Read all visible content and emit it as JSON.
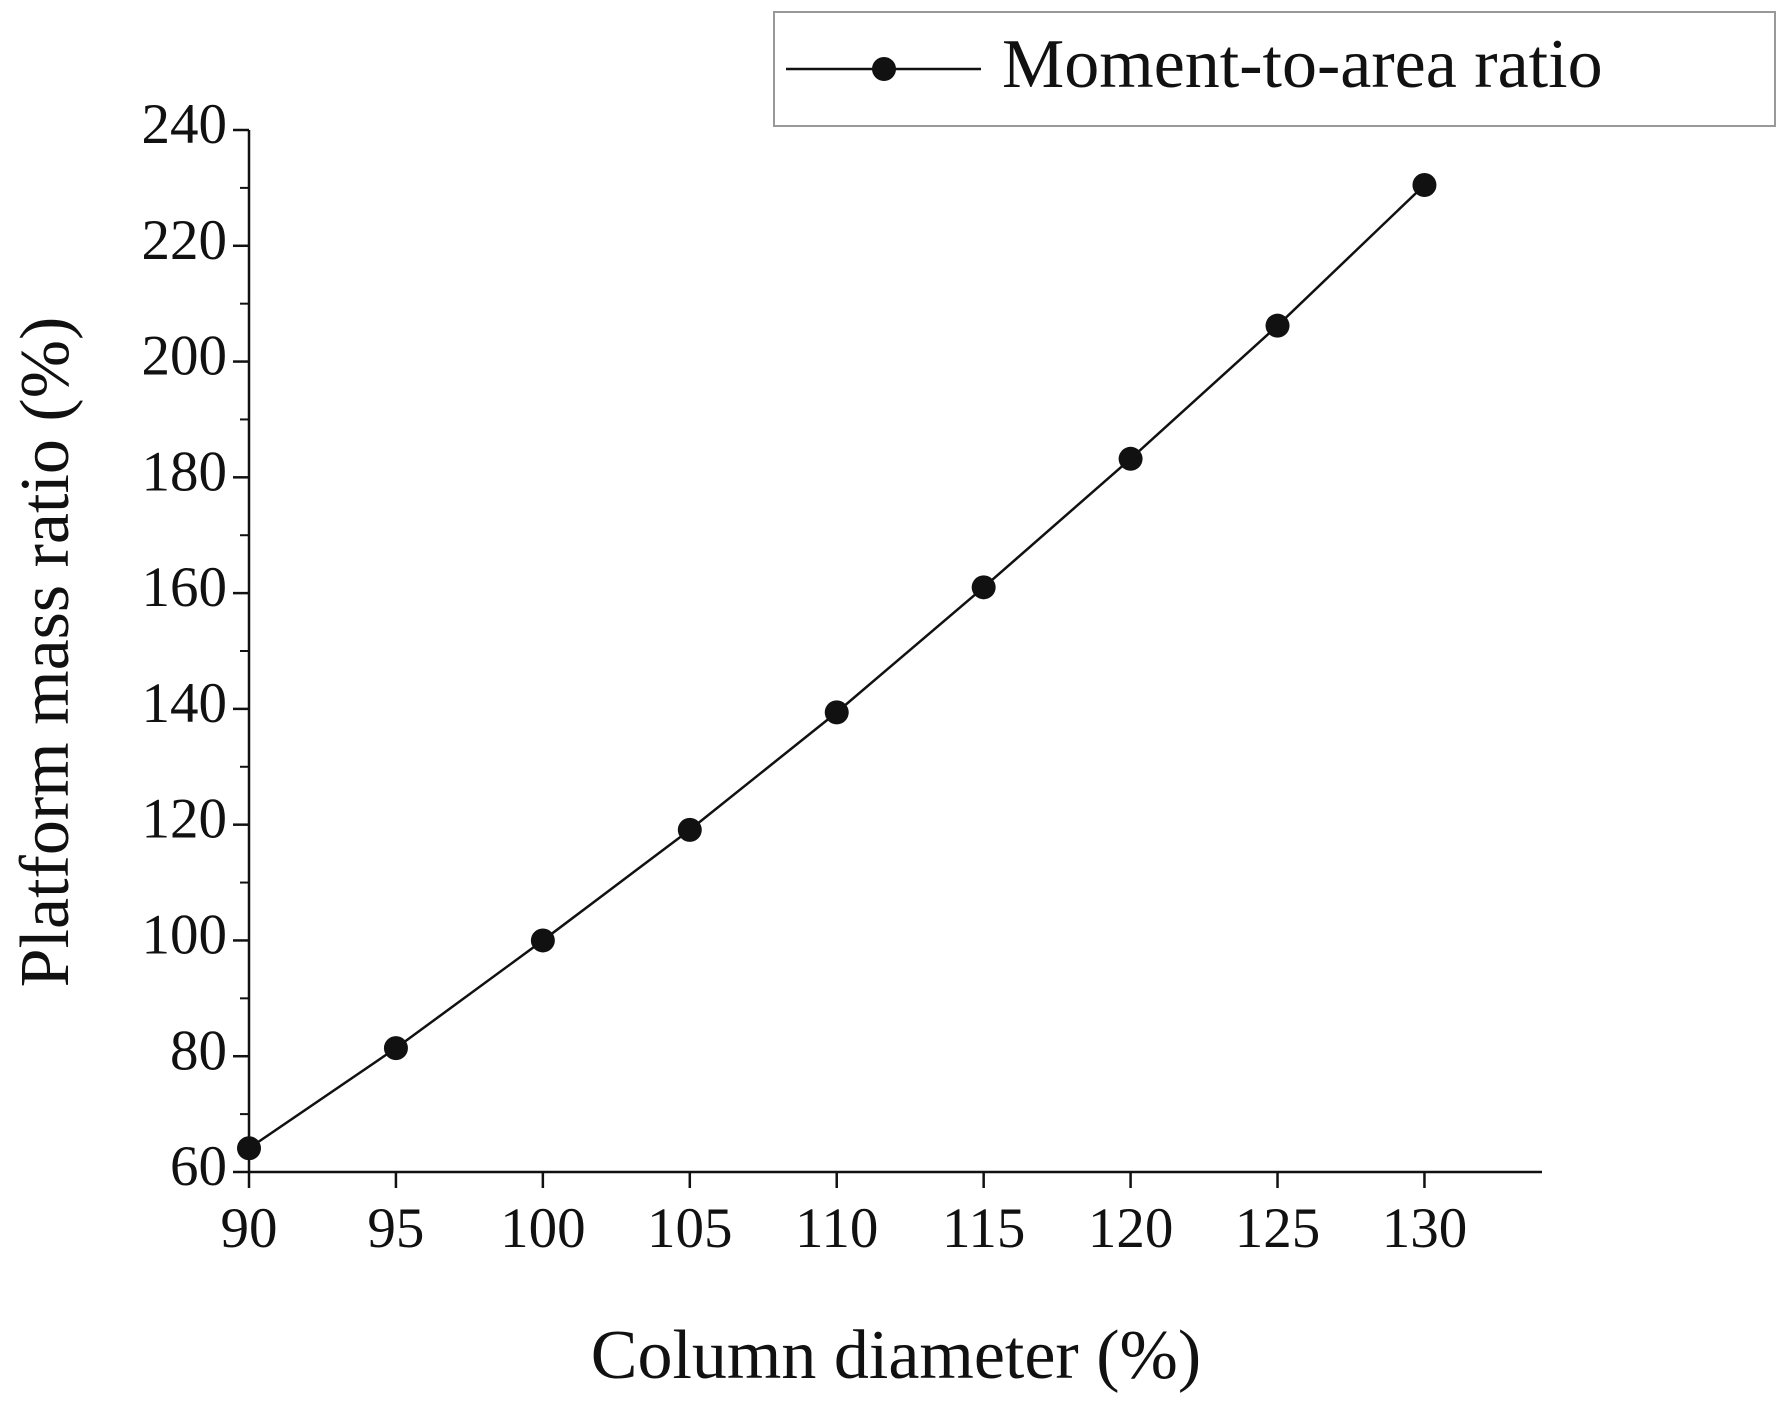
{
  "chart_data": {
    "type": "line",
    "x_label": "Column diameter (%)",
    "y_label": "Platform mass ratio (%)",
    "x": [
      90,
      95,
      100,
      105,
      110,
      115,
      120,
      125,
      130
    ],
    "series": [
      {
        "name": "Moment-to-area ratio",
        "color": "#111111",
        "values": [
          64.1,
          81.4,
          100,
          119.1,
          139.4,
          161,
          183.2,
          206.2,
          230.5
        ]
      }
    ],
    "xlim": [
      90,
      134
    ],
    "ylim": [
      60,
      240
    ],
    "xticks": [
      90,
      95,
      100,
      105,
      110,
      115,
      120,
      125,
      130
    ],
    "yticks": [
      60,
      80,
      100,
      120,
      140,
      160,
      180,
      200,
      220,
      240
    ],
    "yminorticks": [
      70,
      90,
      110,
      130,
      150,
      170,
      190,
      210,
      230
    ],
    "legend": "upper right",
    "grid": false
  }
}
